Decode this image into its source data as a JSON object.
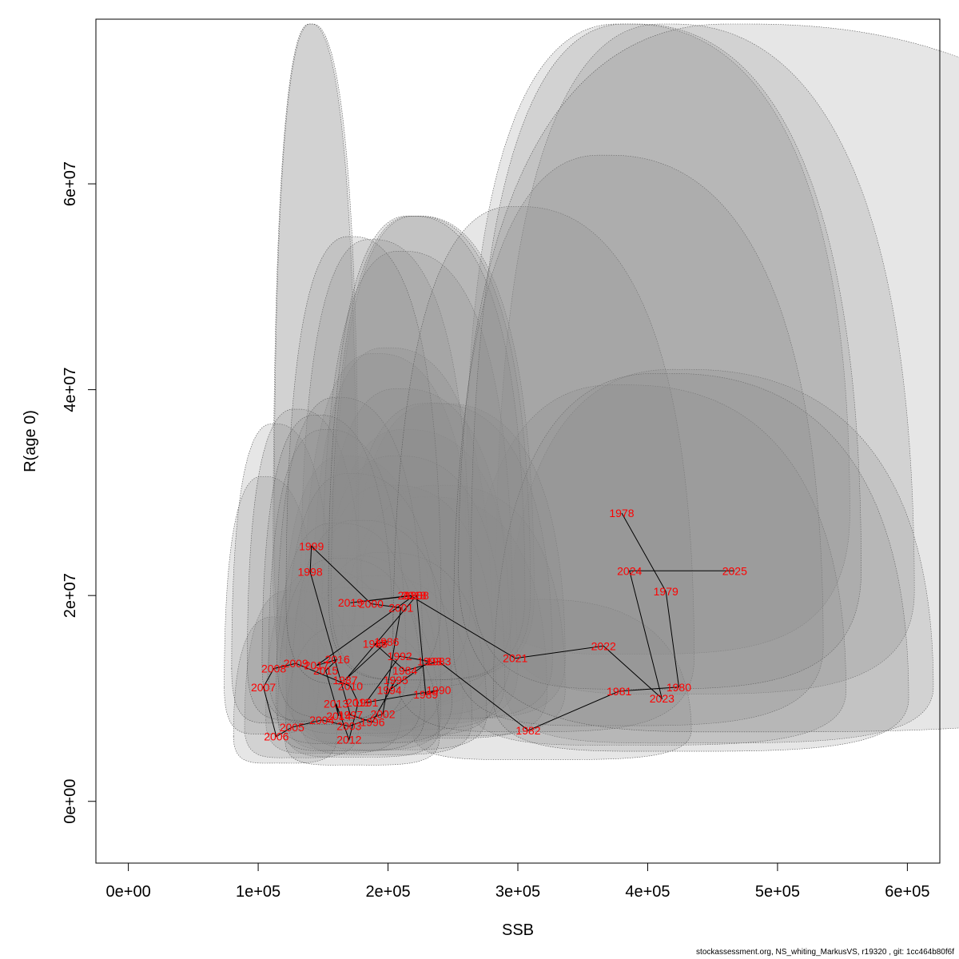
{
  "chart_data": {
    "type": "scatter",
    "xlabel": "SSB",
    "ylabel": "R(age 0)",
    "xlim": [
      -25000,
      625000
    ],
    "ylim": [
      -6000000,
      76000000
    ],
    "x_ticks": [
      {
        "value": 0,
        "label": "0e+00"
      },
      {
        "value": 100000,
        "label": "1e+05"
      },
      {
        "value": 200000,
        "label": "2e+05"
      },
      {
        "value": 300000,
        "label": "3e+05"
      },
      {
        "value": 400000,
        "label": "4e+05"
      },
      {
        "value": 500000,
        "label": "5e+05"
      },
      {
        "value": 600000,
        "label": "6e+05"
      }
    ],
    "y_ticks": [
      {
        "value": 0,
        "label": "0e+00"
      },
      {
        "value": 20000000,
        "label": "2e+07"
      },
      {
        "value": 40000000,
        "label": "4e+07"
      },
      {
        "value": 60000000,
        "label": "6e+07"
      }
    ],
    "colors": {
      "label": "#ff0000",
      "path": "#000000",
      "ellipse": "#8c8c8c",
      "ellipse_border": "#555555"
    },
    "points": [
      {
        "year": "1978",
        "ssb": 380000,
        "r": 28000000
      },
      {
        "year": "1979",
        "ssb": 414000,
        "r": 20400000
      },
      {
        "year": "1980",
        "ssb": 424000,
        "r": 11100000
      },
      {
        "year": "1981",
        "ssb": 378000,
        "r": 10700000
      },
      {
        "year": "1982",
        "ssb": 308000,
        "r": 6900000
      },
      {
        "year": "1983",
        "ssb": 239000,
        "r": 13600000
      },
      {
        "year": "1984",
        "ssb": 213000,
        "r": 12700000
      },
      {
        "year": "1985",
        "ssb": 190000,
        "r": 15300000
      },
      {
        "year": "1986",
        "ssb": 199000,
        "r": 15500000
      },
      {
        "year": "1987",
        "ssb": 167000,
        "r": 11800000
      },
      {
        "year": "1988",
        "ssb": 222000,
        "r": 20000000
      },
      {
        "year": "1989",
        "ssb": 229000,
        "r": 10400000
      },
      {
        "year": "1990",
        "ssb": 239000,
        "r": 10800000
      },
      {
        "year": "1991",
        "ssb": 183000,
        "r": 9600000
      },
      {
        "year": "1992",
        "ssb": 209000,
        "r": 14100000
      },
      {
        "year": "1993",
        "ssb": 232000,
        "r": 13600000
      },
      {
        "year": "1994",
        "ssb": 201000,
        "r": 10800000
      },
      {
        "year": "1995",
        "ssb": 206000,
        "r": 11800000
      },
      {
        "year": "1996",
        "ssb": 188000,
        "r": 7700000
      },
      {
        "year": "1997",
        "ssb": 171000,
        "r": 8400000
      },
      {
        "year": "1998",
        "ssb": 140000,
        "r": 22300000
      },
      {
        "year": "1999",
        "ssb": 141000,
        "r": 24800000
      },
      {
        "year": "2000",
        "ssb": 187000,
        "r": 19200000
      },
      {
        "year": "2001",
        "ssb": 210000,
        "r": 18800000
      },
      {
        "year": "2002",
        "ssb": 196000,
        "r": 8500000
      },
      {
        "year": "2003",
        "ssb": 170000,
        "r": 7300000
      },
      {
        "year": "2004",
        "ssb": 149000,
        "r": 7900000
      },
      {
        "year": "2005",
        "ssb": 126000,
        "r": 7200000
      },
      {
        "year": "2006",
        "ssb": 114000,
        "r": 6300000
      },
      {
        "year": "2007",
        "ssb": 104000,
        "r": 11100000
      },
      {
        "year": "2008",
        "ssb": 112000,
        "r": 12900000
      },
      {
        "year": "2009",
        "ssb": 129000,
        "r": 13400000
      },
      {
        "year": "2010",
        "ssb": 171000,
        "r": 11200000
      },
      {
        "year": "2011",
        "ssb": 177000,
        "r": 9600000
      },
      {
        "year": "2012",
        "ssb": 170000,
        "r": 6000000
      },
      {
        "year": "2013",
        "ssb": 160000,
        "r": 9500000
      },
      {
        "year": "2014",
        "ssb": 162000,
        "r": 8300000
      },
      {
        "year": "2015",
        "ssb": 152000,
        "r": 12700000
      },
      {
        "year": "2016",
        "ssb": 161000,
        "r": 13800000
      },
      {
        "year": "2017",
        "ssb": 145000,
        "r": 13200000
      },
      {
        "year": "2018",
        "ssb": 220000,
        "r": 20000000
      },
      {
        "year": "2019",
        "ssb": 171000,
        "r": 19300000
      },
      {
        "year": "2020",
        "ssb": 217000,
        "r": 20000000
      },
      {
        "year": "2021",
        "ssb": 298000,
        "r": 13900000
      },
      {
        "year": "2022",
        "ssb": 366000,
        "r": 15100000
      },
      {
        "year": "2023",
        "ssb": 411000,
        "r": 10000000
      },
      {
        "year": "2024",
        "ssb": 386000,
        "r": 22400000
      },
      {
        "year": "2025",
        "ssb": 467000,
        "r": 22400000
      }
    ]
  },
  "footer": "stockassessment.org, NS_whiting_MarkusVS, r19320 , git: 1cc464b80f6f"
}
